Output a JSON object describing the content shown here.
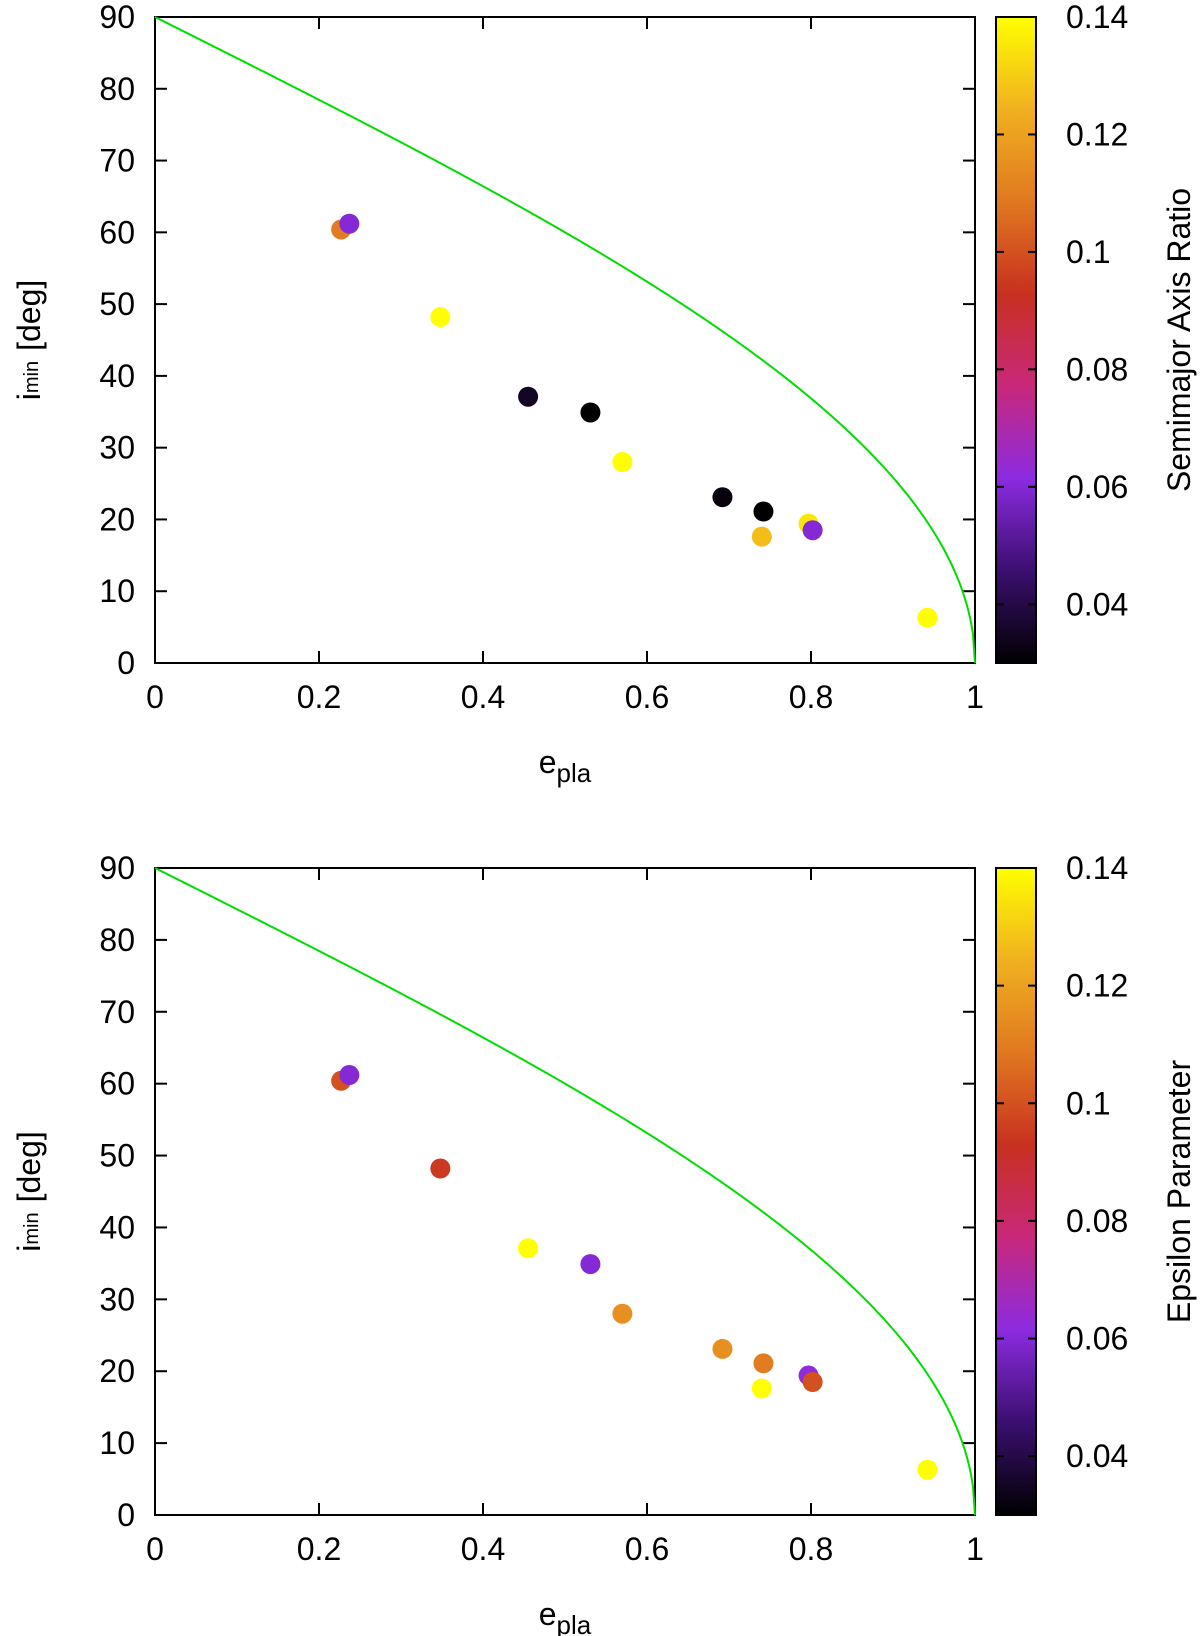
{
  "chart_data": [
    {
      "type": "scatter",
      "title": "",
      "xlabel": "e",
      "xlabel_sub": "pla",
      "ylabel_main": "i",
      "ylabel_sub": "min",
      "ylabel_unit": "[deg]",
      "xlim": [
        0,
        1
      ],
      "ylim": [
        0,
        90
      ],
      "x_ticks": [
        "0",
        "0.2",
        "0.4",
        "0.6",
        "0.8",
        "1"
      ],
      "y_ticks": [
        "0",
        "10",
        "20",
        "30",
        "40",
        "50",
        "60",
        "70",
        "80",
        "90"
      ],
      "colorbar": {
        "label": "Semimajor Axis Ratio",
        "range": [
          0.03,
          0.14
        ],
        "ticks": [
          "0.04",
          "0.06",
          "0.08",
          "0.1",
          "0.12",
          "0.14"
        ],
        "palette": [
          "#000000",
          "#3b0f70",
          "#8c2be0",
          "#c8287a",
          "#c83020",
          "#e07820",
          "#f0b020",
          "#ffff00"
        ]
      },
      "curve": {
        "name": "i_min(e)",
        "color": "#00dd00"
      },
      "points": [
        {
          "x": 0.227,
          "y": 60.4,
          "c": 0.11
        },
        {
          "x": 0.237,
          "y": 61.2,
          "c": 0.06
        },
        {
          "x": 0.348,
          "y": 48.2,
          "c": 0.14
        },
        {
          "x": 0.455,
          "y": 37.1,
          "c": 0.035
        },
        {
          "x": 0.531,
          "y": 34.9,
          "c": 0.03
        },
        {
          "x": 0.57,
          "y": 28.0,
          "c": 0.14
        },
        {
          "x": 0.692,
          "y": 23.1,
          "c": 0.032
        },
        {
          "x": 0.74,
          "y": 17.6,
          "c": 0.127
        },
        {
          "x": 0.742,
          "y": 21.1,
          "c": 0.03
        },
        {
          "x": 0.797,
          "y": 19.4,
          "c": 0.135
        },
        {
          "x": 0.802,
          "y": 18.5,
          "c": 0.06
        },
        {
          "x": 0.942,
          "y": 6.3,
          "c": 0.14
        }
      ]
    },
    {
      "type": "scatter",
      "title": "",
      "xlabel": "e",
      "xlabel_sub": "pla",
      "ylabel_main": "i",
      "ylabel_sub": "min",
      "ylabel_unit": "[deg]",
      "xlim": [
        0,
        1
      ],
      "ylim": [
        0,
        90
      ],
      "x_ticks": [
        "0",
        "0.2",
        "0.4",
        "0.6",
        "0.8",
        "1"
      ],
      "y_ticks": [
        "0",
        "10",
        "20",
        "30",
        "40",
        "50",
        "60",
        "70",
        "80",
        "90"
      ],
      "colorbar": {
        "label": "Epsilon Parameter",
        "range": [
          0.03,
          0.14
        ],
        "ticks": [
          "0.04",
          "0.06",
          "0.08",
          "0.1",
          "0.12",
          "0.14"
        ],
        "palette": [
          "#000000",
          "#3b0f70",
          "#8c2be0",
          "#c8287a",
          "#c83020",
          "#e07820",
          "#f0b020",
          "#ffff00"
        ]
      },
      "curve": {
        "name": "i_min(e)",
        "color": "#00dd00"
      },
      "points": [
        {
          "x": 0.227,
          "y": 60.4,
          "c": 0.1
        },
        {
          "x": 0.237,
          "y": 61.2,
          "c": 0.06
        },
        {
          "x": 0.348,
          "y": 48.2,
          "c": 0.095
        },
        {
          "x": 0.455,
          "y": 37.1,
          "c": 0.14
        },
        {
          "x": 0.531,
          "y": 34.9,
          "c": 0.06
        },
        {
          "x": 0.57,
          "y": 28.0,
          "c": 0.115
        },
        {
          "x": 0.692,
          "y": 23.1,
          "c": 0.115
        },
        {
          "x": 0.74,
          "y": 17.6,
          "c": 0.14
        },
        {
          "x": 0.742,
          "y": 21.1,
          "c": 0.11
        },
        {
          "x": 0.797,
          "y": 19.4,
          "c": 0.062
        },
        {
          "x": 0.802,
          "y": 18.5,
          "c": 0.1
        },
        {
          "x": 0.942,
          "y": 6.3,
          "c": 0.14
        }
      ]
    }
  ]
}
